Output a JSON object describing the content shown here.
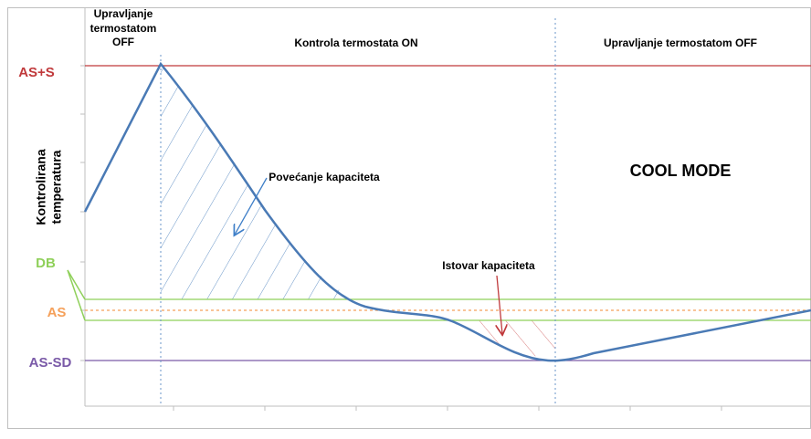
{
  "zones": {
    "left_off": [
      "Upravljanje",
      "termostatom",
      "OFF"
    ],
    "on": "Kontrola termostata ON",
    "right_off": "Upravljanje termostatom OFF"
  },
  "levels": {
    "as_s": "AS+S",
    "db": "DB",
    "as": "AS",
    "as_sd": "AS-SD"
  },
  "y_axis_label": [
    "Kontrolirana",
    "temperatura"
  ],
  "annotations": {
    "increase": "Povećanje kapaciteta",
    "unload": "Istovar kapaciteta"
  },
  "mode": "COOL MODE"
}
